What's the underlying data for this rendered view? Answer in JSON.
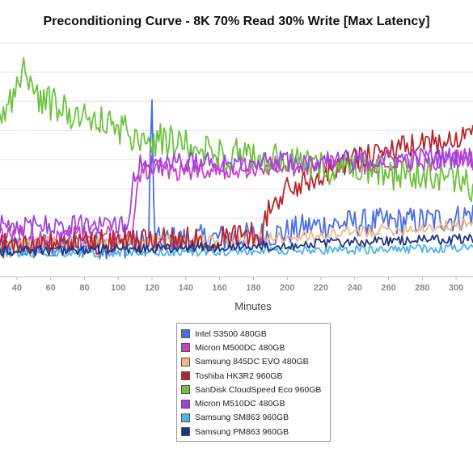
{
  "chart_data": {
    "type": "line",
    "title": "Preconditioning Curve - 8K 70% Read 30% Write [Max Latency]",
    "xlabel": "Minutes",
    "ylabel": "",
    "xlim": [
      30,
      310
    ],
    "ylim": [
      0,
      1
    ],
    "x_ticks": [
      40,
      60,
      80,
      100,
      120,
      140,
      160,
      180,
      200,
      220,
      240,
      260,
      280,
      300
    ],
    "grid": true,
    "legend_position": "bottom",
    "series": [
      {
        "name": "Intel S3500 480GB",
        "color": "#4a6ee8",
        "points": [
          [
            30,
            0.125
          ],
          [
            60,
            0.13
          ],
          [
            90,
            0.135
          ],
          [
            110,
            0.14
          ],
          [
            118,
            0.15
          ],
          [
            119,
            0.55
          ],
          [
            120,
            0.72
          ],
          [
            121,
            0.3
          ],
          [
            122,
            0.15
          ],
          [
            140,
            0.16
          ],
          [
            160,
            0.165
          ],
          [
            180,
            0.175
          ],
          [
            200,
            0.19
          ],
          [
            210,
            0.21
          ],
          [
            220,
            0.22
          ],
          [
            240,
            0.23
          ],
          [
            260,
            0.235
          ],
          [
            280,
            0.24
          ],
          [
            300,
            0.25
          ],
          [
            310,
            0.27
          ]
        ]
      },
      {
        "name": "Micron M500DC 480GB",
        "color": "#cc3fc4",
        "points": [
          [
            30,
            0.175
          ],
          [
            60,
            0.172
          ],
          [
            90,
            0.175
          ],
          [
            108,
            0.17
          ],
          [
            112,
            0.45
          ],
          [
            130,
            0.455
          ],
          [
            150,
            0.46
          ],
          [
            170,
            0.465
          ],
          [
            190,
            0.47
          ],
          [
            210,
            0.475
          ],
          [
            230,
            0.48
          ],
          [
            250,
            0.485
          ],
          [
            270,
            0.49
          ],
          [
            290,
            0.495
          ],
          [
            310,
            0.5
          ]
        ]
      },
      {
        "name": "Samsung 845DC EVO 480GB",
        "color": "#f0b984",
        "points": [
          [
            30,
            0.14
          ],
          [
            60,
            0.145
          ],
          [
            90,
            0.15
          ],
          [
            120,
            0.155
          ],
          [
            140,
            0.155
          ],
          [
            160,
            0.16
          ],
          [
            180,
            0.165
          ],
          [
            200,
            0.17
          ],
          [
            220,
            0.175
          ],
          [
            240,
            0.19
          ],
          [
            260,
            0.2
          ],
          [
            280,
            0.21
          ],
          [
            300,
            0.22
          ],
          [
            310,
            0.23
          ]
        ]
      },
      {
        "name": "Toshiba HK3R2 960GB",
        "color": "#b8232a",
        "points": [
          [
            30,
            0.135
          ],
          [
            60,
            0.14
          ],
          [
            90,
            0.15
          ],
          [
            110,
            0.155
          ],
          [
            130,
            0.16
          ],
          [
            150,
            0.165
          ],
          [
            170,
            0.175
          ],
          [
            185,
            0.19
          ],
          [
            190,
            0.3
          ],
          [
            200,
            0.37
          ],
          [
            215,
            0.42
          ],
          [
            230,
            0.48
          ],
          [
            250,
            0.52
          ],
          [
            270,
            0.55
          ],
          [
            290,
            0.58
          ],
          [
            300,
            0.6
          ],
          [
            310,
            0.63
          ]
        ]
      },
      {
        "name": "SanDisk CloudSpeed Eco 960GB",
        "color": "#6cc23d",
        "points": [
          [
            30,
            0.65
          ],
          [
            40,
            0.82
          ],
          [
            45,
            0.9
          ],
          [
            50,
            0.78
          ],
          [
            60,
            0.74
          ],
          [
            70,
            0.71
          ],
          [
            80,
            0.69
          ],
          [
            90,
            0.66
          ],
          [
            100,
            0.63
          ],
          [
            110,
            0.61
          ],
          [
            120,
            0.59
          ],
          [
            140,
            0.56
          ],
          [
            160,
            0.53
          ],
          [
            180,
            0.51
          ],
          [
            200,
            0.49
          ],
          [
            220,
            0.47
          ],
          [
            240,
            0.45
          ],
          [
            260,
            0.44
          ],
          [
            280,
            0.43
          ],
          [
            300,
            0.41
          ],
          [
            310,
            0.38
          ]
        ]
      },
      {
        "name": "Micron M510DC 480GB",
        "color": "#9e44dd",
        "points": [
          [
            30,
            0.22
          ],
          [
            60,
            0.22
          ],
          [
            90,
            0.225
          ],
          [
            106,
            0.23
          ],
          [
            108,
            0.4
          ],
          [
            112,
            0.48
          ],
          [
            130,
            0.485
          ],
          [
            150,
            0.49
          ],
          [
            170,
            0.49
          ],
          [
            190,
            0.49
          ],
          [
            210,
            0.495
          ],
          [
            230,
            0.5
          ],
          [
            250,
            0.5
          ],
          [
            270,
            0.505
          ],
          [
            290,
            0.51
          ],
          [
            310,
            0.51
          ]
        ]
      },
      {
        "name": "Samsung SM863 960GB",
        "color": "#4fb3e8",
        "points": [
          [
            30,
            0.1
          ],
          [
            60,
            0.1
          ],
          [
            90,
            0.102
          ],
          [
            120,
            0.104
          ],
          [
            150,
            0.106
          ],
          [
            180,
            0.11
          ],
          [
            210,
            0.112
          ],
          [
            240,
            0.115
          ],
          [
            270,
            0.118
          ],
          [
            300,
            0.12
          ],
          [
            310,
            0.12
          ]
        ]
      },
      {
        "name": "Samsung PM863 960GB",
        "color": "#1e3580",
        "points": [
          [
            30,
            0.11
          ],
          [
            60,
            0.112
          ],
          [
            90,
            0.116
          ],
          [
            120,
            0.12
          ],
          [
            150,
            0.125
          ],
          [
            180,
            0.13
          ],
          [
            200,
            0.135
          ],
          [
            220,
            0.142
          ],
          [
            240,
            0.148
          ],
          [
            260,
            0.152
          ],
          [
            280,
            0.156
          ],
          [
            300,
            0.16
          ],
          [
            310,
            0.165
          ]
        ]
      }
    ]
  }
}
